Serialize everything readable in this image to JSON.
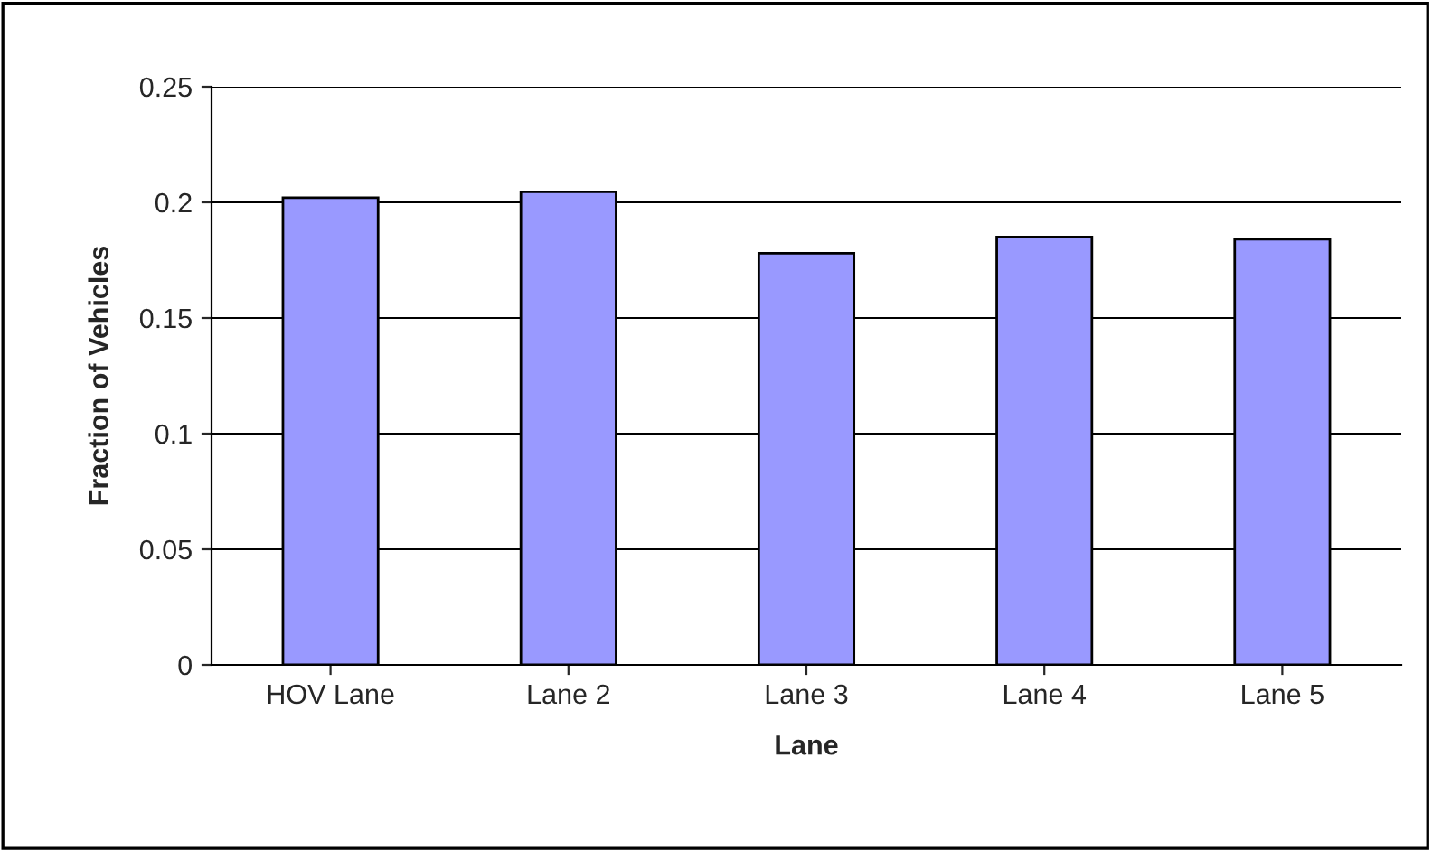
{
  "chart_data": {
    "type": "bar",
    "xlabel": "Lane",
    "ylabel": "Fraction of Vehicles",
    "categories": [
      "HOV Lane",
      "Lane 2",
      "Lane 3",
      "Lane 4",
      "Lane 5"
    ],
    "values": [
      0.202,
      0.2045,
      0.178,
      0.185,
      0.184
    ],
    "color": "#9999ff",
    "ylim": [
      0,
      0.25
    ],
    "yticks": [
      {
        "value": 0,
        "label": "0"
      },
      {
        "value": 0.05,
        "label": "0.05"
      },
      {
        "value": 0.1,
        "label": "0.1"
      },
      {
        "value": 0.15,
        "label": "0.15"
      },
      {
        "value": 0.2,
        "label": "0.2"
      },
      {
        "value": 0.25,
        "label": "0.25"
      }
    ],
    "grid": "y",
    "legend": false
  }
}
